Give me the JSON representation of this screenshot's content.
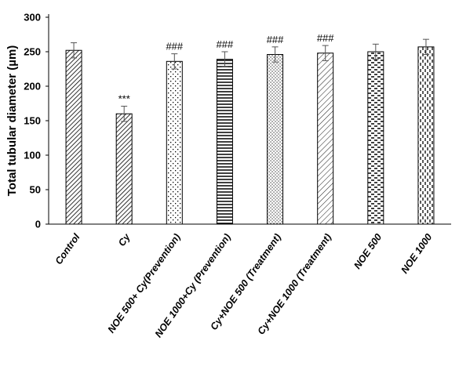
{
  "chart_data": {
    "type": "bar",
    "title": "",
    "xlabel": "",
    "ylabel": "Total tubular diameter (µm)",
    "ylim": [
      0,
      300
    ],
    "yticks": [
      "0",
      "50",
      "100",
      "150",
      "200",
      "250",
      "300"
    ],
    "grid": false,
    "legend": "none",
    "categories": [
      "Control",
      "Cy",
      "NOE 500+ Cy(Prevention)",
      "NOE 1000+Cy (Prevention)",
      "Cy+NOE 500 (Treatment)",
      "Cy+NOE 1000 (Treatment)",
      "NOE 500",
      "NOE 1000"
    ],
    "values": [
      252,
      160,
      236,
      239,
      246,
      248,
      250,
      257
    ],
    "errors": [
      11,
      11,
      11,
      11,
      11,
      11,
      11,
      11
    ],
    "annotations": [
      "",
      "***",
      "###",
      "###",
      "###",
      "###",
      "",
      ""
    ],
    "patterns": [
      "diag-dense",
      "diag-dense",
      "dots",
      "hlines",
      "dots-fine",
      "diag-light",
      "dashes",
      "vdashes"
    ],
    "colors": {
      "bar_stroke": "#000000",
      "pattern": "#000000",
      "background": "#ffffff"
    }
  }
}
